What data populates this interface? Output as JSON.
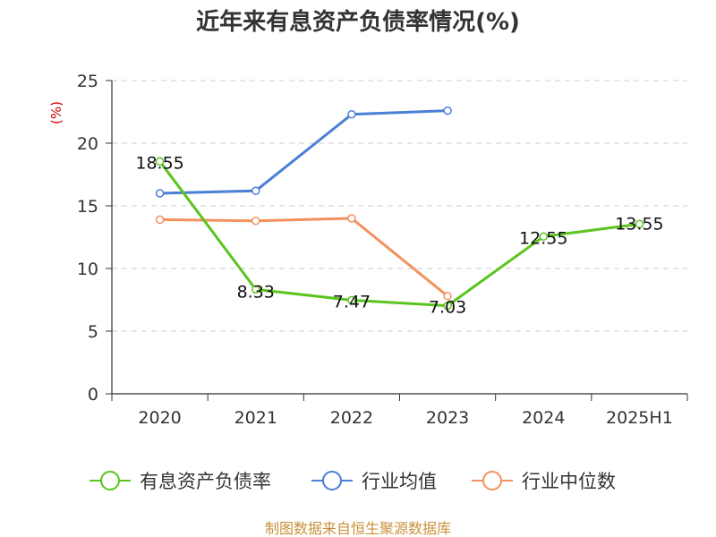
{
  "chart_data": {
    "type": "line",
    "title": "近年来有息资产负债率情况(%)",
    "ylabel": "(%)",
    "categories": [
      "2020",
      "2021",
      "2022",
      "2023",
      "2024",
      "2025H1"
    ],
    "ylim": [
      0,
      25
    ],
    "yticks": [
      0,
      5,
      10,
      15,
      20,
      25
    ],
    "grid": "horizontal dashed",
    "legend": "bottom",
    "series": [
      {
        "name": "有息资产负债率",
        "color": "#5bc41e",
        "values": [
          18.55,
          8.33,
          7.47,
          7.03,
          12.55,
          13.55
        ],
        "labels": [
          "18.55",
          "8.33",
          "7.47",
          "7.03",
          "12.55",
          "13.55"
        ]
      },
      {
        "name": "行业均值",
        "color": "#4a7fd6",
        "values": [
          16.0,
          16.2,
          22.3,
          22.6,
          null,
          null
        ]
      },
      {
        "name": "行业中位数",
        "color": "#f4915e",
        "values": [
          13.9,
          13.8,
          14.0,
          7.8,
          null,
          null
        ]
      }
    ]
  },
  "source": "制图数据来自恒生聚源数据库"
}
